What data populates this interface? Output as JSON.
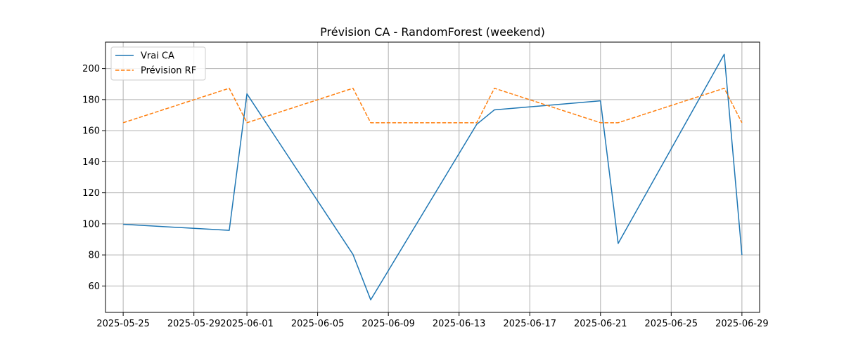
{
  "chart_data": {
    "type": "line",
    "title": "Prévision CA - RandomForest (weekend)",
    "xlabel": "",
    "ylabel": "",
    "x_axis_type": "date",
    "xlim": [
      "2025-05-24",
      "2025-06-30"
    ],
    "ylim": [
      43,
      217
    ],
    "grid": true,
    "legend_position": "top-left",
    "x_ticks": [
      "2025-05-25",
      "2025-05-29",
      "2025-06-01",
      "2025-06-05",
      "2025-06-09",
      "2025-06-13",
      "2025-06-17",
      "2025-06-21",
      "2025-06-25",
      "2025-06-29"
    ],
    "y_ticks": [
      60,
      80,
      100,
      120,
      140,
      160,
      180,
      200
    ],
    "series": [
      {
        "name": "Vrai CA",
        "color": "#1f77b4",
        "style": "solid",
        "points": [
          {
            "x": "2025-05-25",
            "y": 99.7
          },
          {
            "x": "2025-05-31",
            "y": 95.8
          },
          {
            "x": "2025-06-01",
            "y": 183.7
          },
          {
            "x": "2025-06-07",
            "y": 80.3
          },
          {
            "x": "2025-06-08",
            "y": 51.1
          },
          {
            "x": "2025-06-14",
            "y": 164.1
          },
          {
            "x": "2025-06-15",
            "y": 173.4
          },
          {
            "x": "2025-06-21",
            "y": 179.2
          },
          {
            "x": "2025-06-22",
            "y": 87.4
          },
          {
            "x": "2025-06-28",
            "y": 209.2
          },
          {
            "x": "2025-06-29",
            "y": 80.0
          }
        ]
      },
      {
        "name": "Prévision RF",
        "color": "#ff7f0e",
        "style": "dashed",
        "points": [
          {
            "x": "2025-05-25",
            "y": 165.1
          },
          {
            "x": "2025-05-31",
            "y": 187.3
          },
          {
            "x": "2025-06-01",
            "y": 165.1
          },
          {
            "x": "2025-06-07",
            "y": 187.3
          },
          {
            "x": "2025-06-08",
            "y": 165.1
          },
          {
            "x": "2025-06-14",
            "y": 165.1
          },
          {
            "x": "2025-06-15",
            "y": 187.3
          },
          {
            "x": "2025-06-21",
            "y": 165.1
          },
          {
            "x": "2025-06-22",
            "y": 165.1
          },
          {
            "x": "2025-06-28",
            "y": 187.3
          },
          {
            "x": "2025-06-29",
            "y": 165.1
          }
        ]
      }
    ]
  }
}
